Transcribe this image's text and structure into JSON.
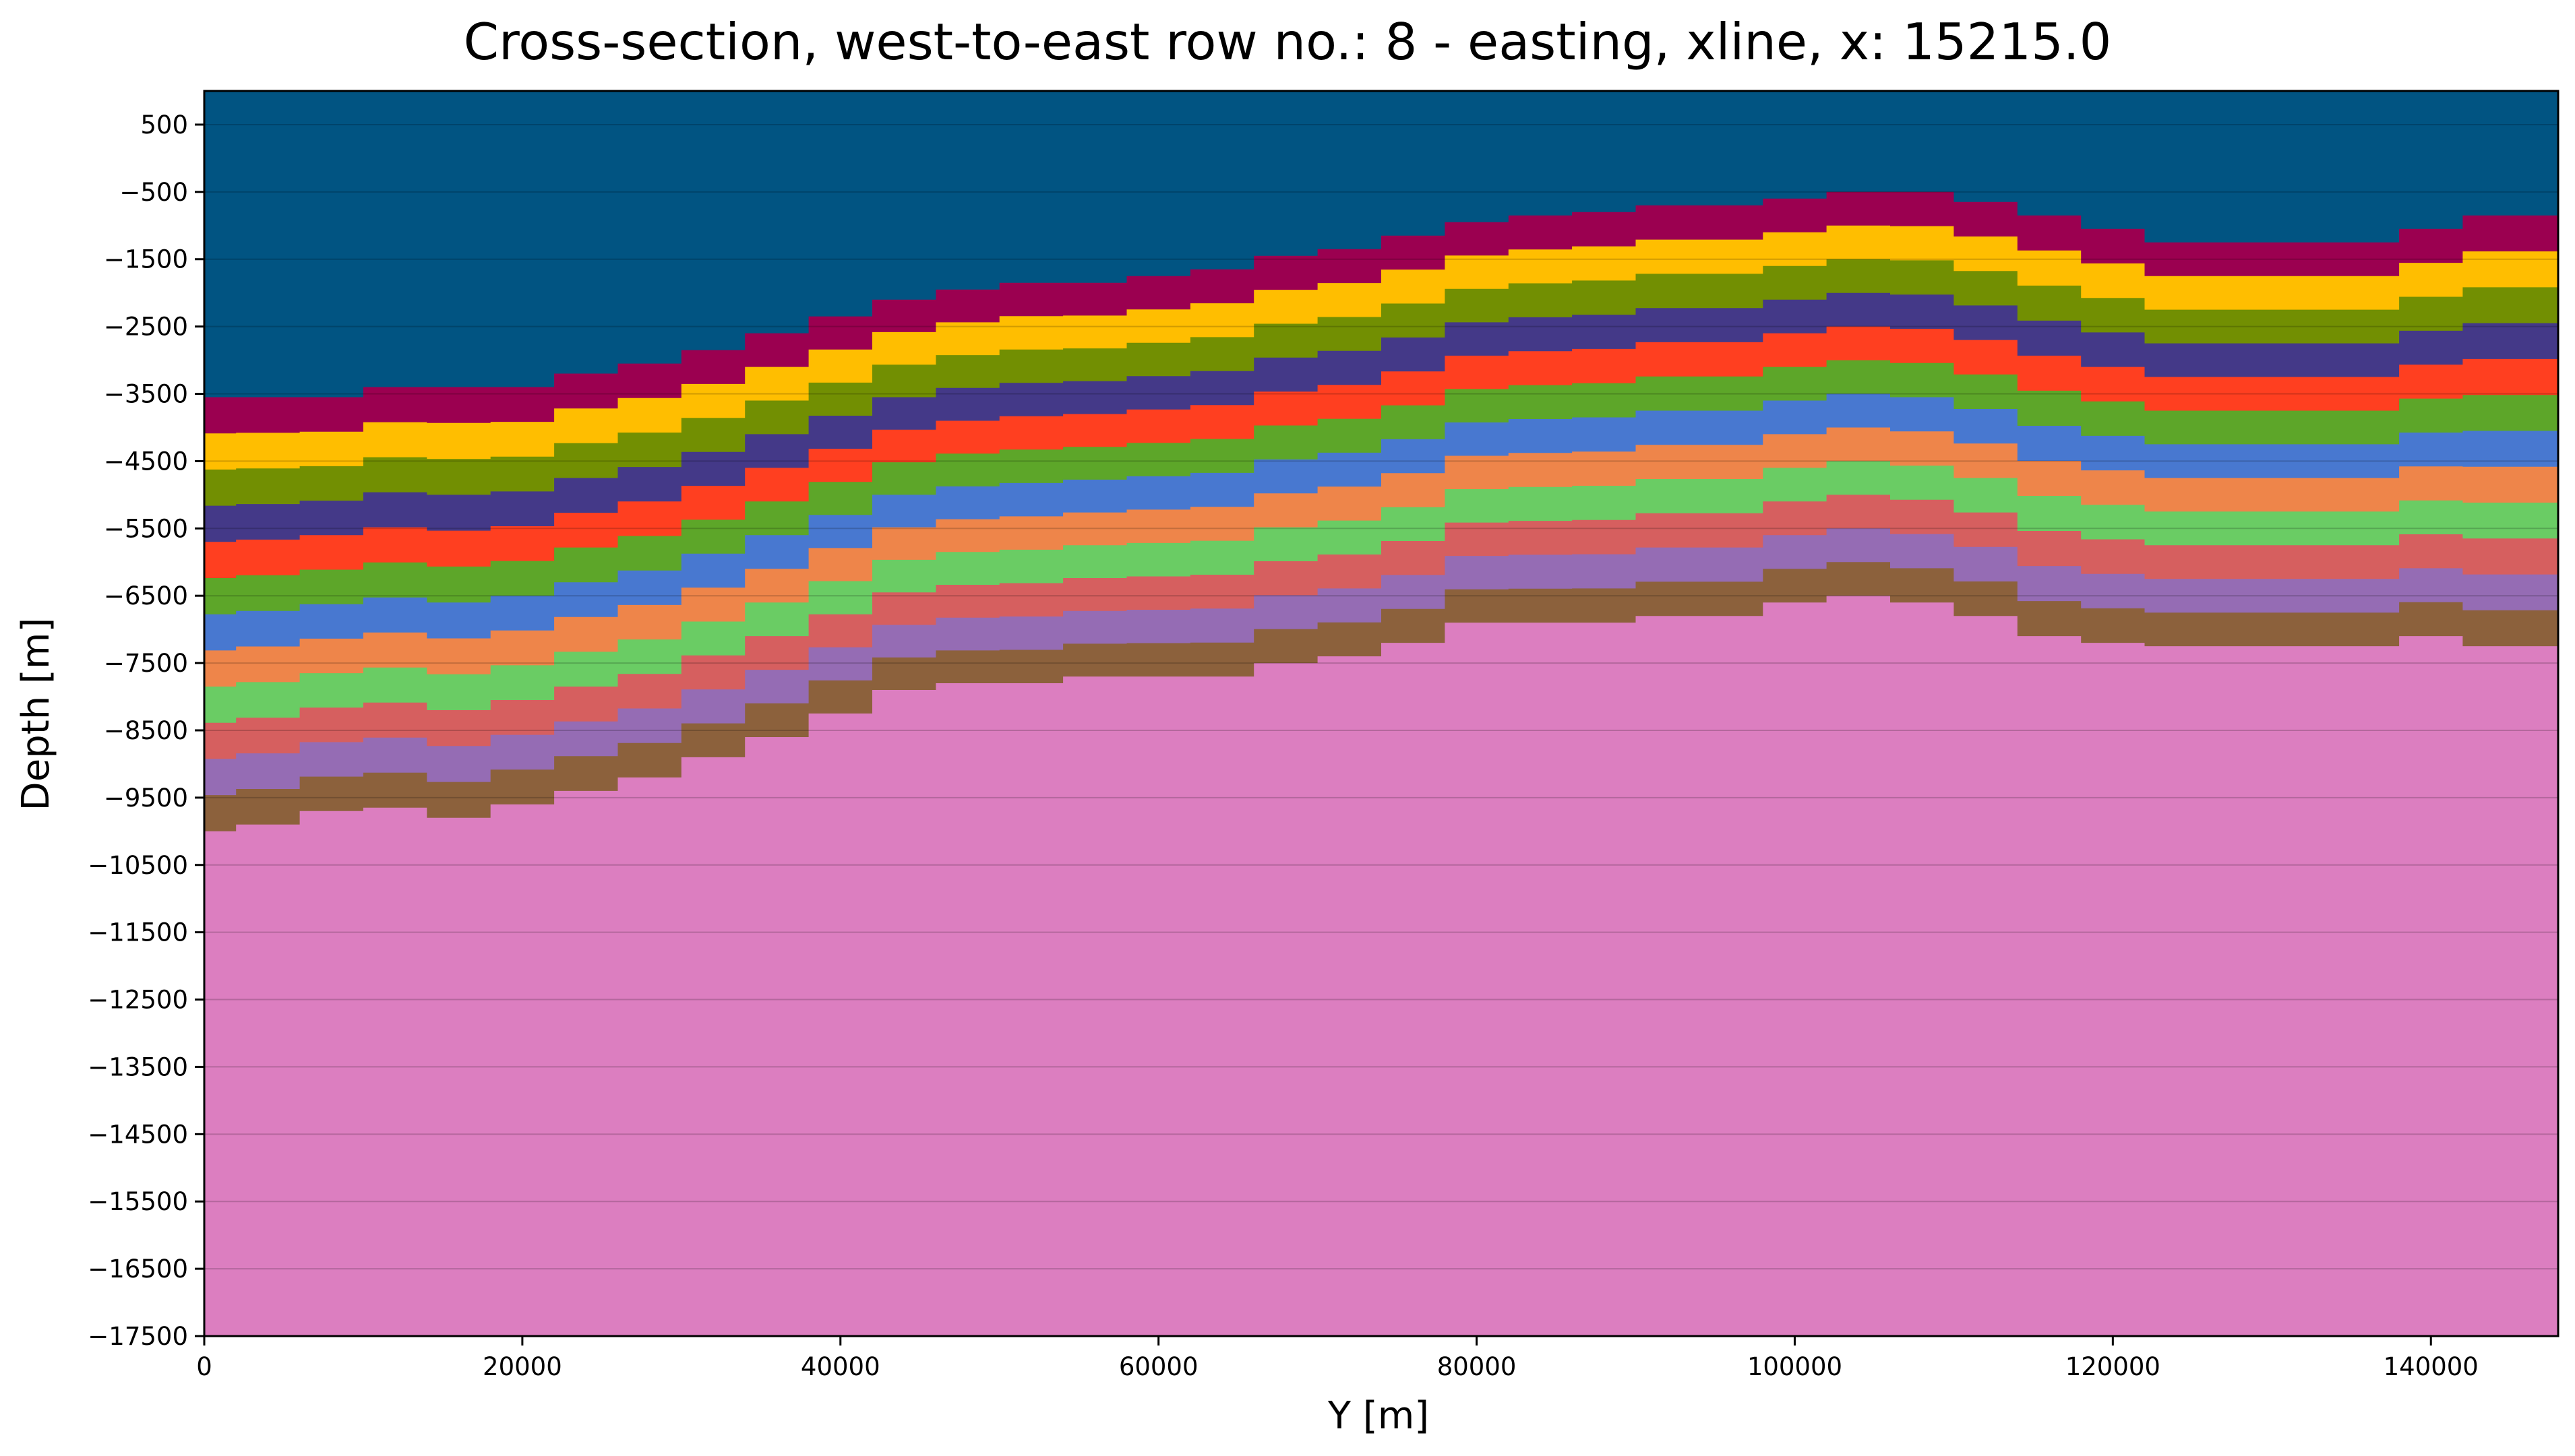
{
  "chart_data": {
    "type": "heatmap",
    "title": "Cross-section, west-to-east row no.: 8 - easting, xline, x: 15215.0",
    "xlabel": "Y [m]",
    "ylabel": "Depth [m]",
    "xlim": [
      0,
      148000
    ],
    "ylim": [
      -17500,
      1000
    ],
    "x_ticks": [
      0,
      20000,
      40000,
      60000,
      80000,
      100000,
      120000,
      140000
    ],
    "x_tick_labels": [
      "0",
      "20000",
      "40000",
      "60000",
      "80000",
      "100000",
      "120000",
      "140000"
    ],
    "y_ticks": [
      500,
      -500,
      -1500,
      -2500,
      -3500,
      -4500,
      -5500,
      -6500,
      -7500,
      -8500,
      -9500,
      -10500,
      -11500,
      -12500,
      -13500,
      -14500,
      -15500,
      -16500,
      -17500
    ],
    "y_tick_labels": [
      "500",
      "−500",
      "−1500",
      "−2500",
      "−3500",
      "−4500",
      "−5500",
      "−6500",
      "−7500",
      "−8500",
      "−9500",
      "−10500",
      "−11500",
      "−12500",
      "−13500",
      "−14500",
      "−15500",
      "−16500",
      "−17500"
    ],
    "grid": true,
    "layer_colors": [
      "#015482",
      "#9b0050",
      "#ffbe00",
      "#728f02",
      "#443988",
      "#ff3f20",
      "#5da629",
      "#4878d0",
      "#ee854a",
      "#6acc64",
      "#d65f5f",
      "#956cb4",
      "#8c613c",
      "#dc7ec0"
    ],
    "x_samples": [
      0,
      4000,
      8000,
      12000,
      16000,
      20000,
      24000,
      28000,
      32000,
      36000,
      40000,
      44000,
      48000,
      52000,
      56000,
      60000,
      64000,
      68000,
      72000,
      76000,
      80000,
      84000,
      88000,
      92000,
      96000,
      100000,
      104000,
      108000,
      112000,
      116000,
      120000,
      124000,
      128000,
      132000,
      136000,
      140000,
      144000,
      148000
    ],
    "top_surface": [
      -3550,
      -3550,
      -3550,
      -3400,
      -3400,
      -3400,
      -3200,
      -3050,
      -2850,
      -2600,
      -2350,
      -2100,
      -1950,
      -1850,
      -1850,
      -1750,
      -1650,
      -1450,
      -1350,
      -1150,
      -950,
      -850,
      -800,
      -700,
      -700,
      -600,
      -500,
      -500,
      -650,
      -850,
      -1050,
      -1250,
      -1250,
      -1250,
      -1250,
      -1050,
      -850,
      -850
    ],
    "basement_top": [
      -10000,
      -9900,
      -9700,
      -9650,
      -9800,
      -9600,
      -9400,
      -9200,
      -8900,
      -8600,
      -8250,
      -7900,
      -7800,
      -7800,
      -7700,
      -7700,
      -7700,
      -7500,
      -7400,
      -7200,
      -6900,
      -6900,
      -6900,
      -6800,
      -6800,
      -6600,
      -6500,
      -6600,
      -6800,
      -7100,
      -7200,
      -7250,
      -7250,
      -7250,
      -7250,
      -7100,
      -7250,
      -7250
    ],
    "layer_thickness": 550
  }
}
